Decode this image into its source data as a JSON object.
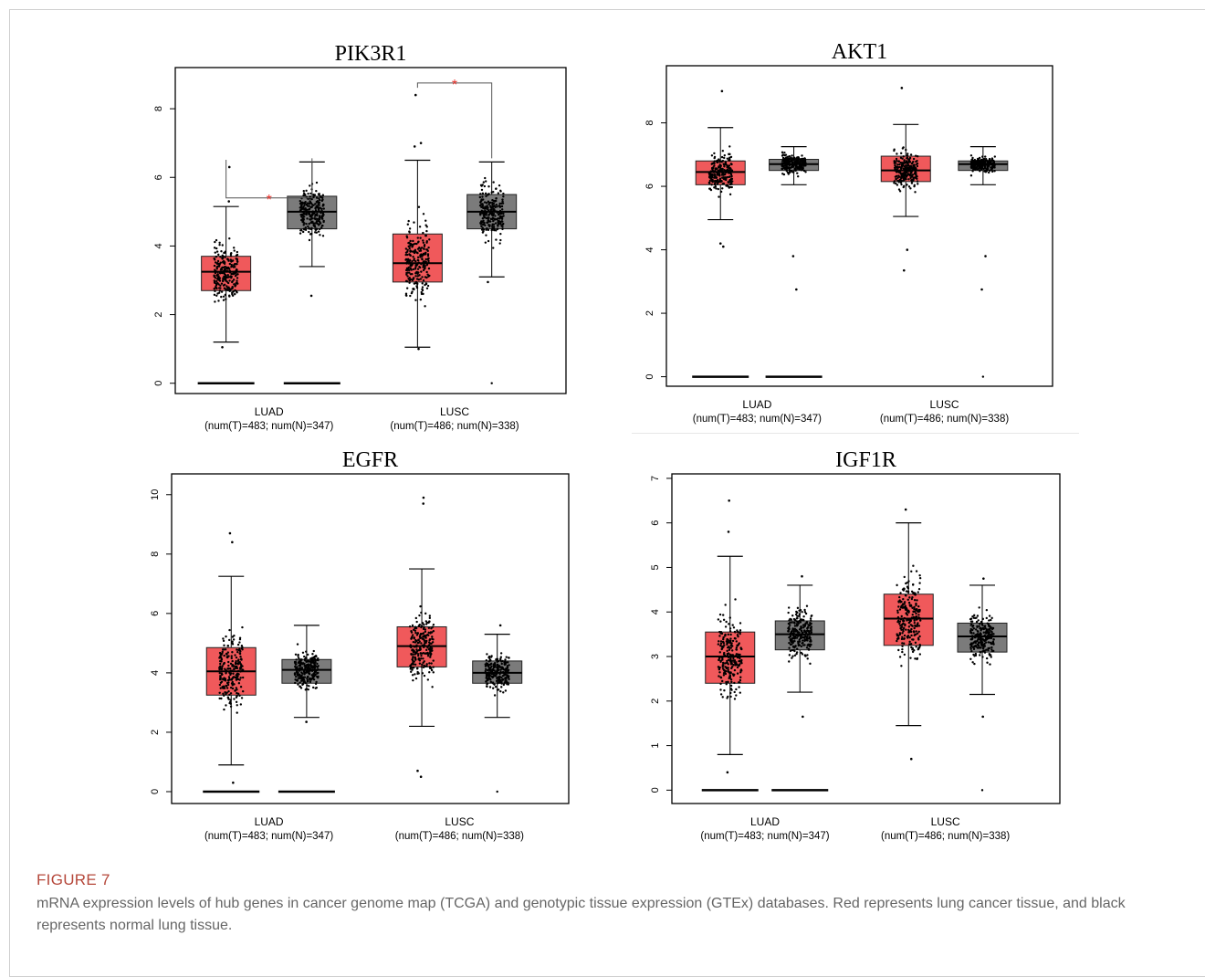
{
  "figure": {
    "label": "FIGURE 7",
    "caption": "mRNA expression levels of hub genes in cancer genome map (TCGA) and genotypic tissue expression (GTEx) databases. Red represents lung cancer tissue, and black represents normal lung tissue."
  },
  "colors": {
    "tumor": "#f0595b",
    "normal": "#7b7b7b",
    "significance": "#e8332c"
  },
  "chart_data": [
    {
      "type": "box",
      "title": "PIK3R1",
      "ylim": [
        -0.3,
        9.2
      ],
      "yticks": [
        "0",
        "2",
        "4",
        "6",
        "8"
      ],
      "groups": [
        {
          "name": "LUAD",
          "label2": "(num(T)=483; num(N)=347)",
          "tumor": {
            "min": 1.2,
            "q1": 2.7,
            "median": 3.25,
            "q3": 3.7,
            "max": 5.15,
            "outliers": [
              6.3,
              5.3,
              1.05,
              0.0
            ]
          },
          "normal": {
            "min": 3.4,
            "q1": 4.5,
            "median": 5.0,
            "q3": 5.45,
            "max": 6.45,
            "outliers": [
              2.55,
              0.0
            ]
          }
        },
        {
          "name": "LUSC",
          "label2": "(num(T)=486; num(N)=338)",
          "tumor": {
            "min": 1.05,
            "q1": 2.95,
            "median": 3.5,
            "q3": 4.35,
            "max": 6.5,
            "outliers": [
              8.4,
              7.0,
              6.9,
              1.0
            ]
          },
          "normal": {
            "min": 3.1,
            "q1": 4.5,
            "median": 5.0,
            "q3": 5.5,
            "max": 6.45,
            "outliers": [
              2.95,
              0.0
            ]
          }
        }
      ],
      "significance": [
        "*",
        "*"
      ]
    },
    {
      "type": "box",
      "title": "AKT1",
      "ylim": [
        -0.3,
        9.8
      ],
      "yticks": [
        "0",
        "2",
        "4",
        "6",
        "8"
      ],
      "groups": [
        {
          "name": "LUAD",
          "label2": "(num(T)=483; num(N)=347)",
          "tumor": {
            "min": 4.95,
            "q1": 6.05,
            "median": 6.45,
            "q3": 6.8,
            "max": 7.85,
            "outliers": [
              9.0,
              4.1,
              4.2,
              0.0
            ]
          },
          "normal": {
            "min": 6.05,
            "q1": 6.5,
            "median": 6.7,
            "q3": 6.85,
            "max": 7.25,
            "outliers": [
              3.8,
              2.75,
              0.0
            ]
          }
        },
        {
          "name": "LUSC",
          "label2": "(num(T)=486; num(N)=338)",
          "tumor": {
            "min": 5.05,
            "q1": 6.15,
            "median": 6.5,
            "q3": 6.95,
            "max": 7.95,
            "outliers": [
              9.1,
              3.35,
              4.0
            ]
          },
          "normal": {
            "min": 6.05,
            "q1": 6.5,
            "median": 6.7,
            "q3": 6.8,
            "max": 7.25,
            "outliers": [
              3.8,
              2.75,
              0.0
            ]
          }
        }
      ],
      "significance": []
    },
    {
      "type": "box",
      "title": "EGFR",
      "ylim": [
        -0.4,
        10.7
      ],
      "yticks": [
        "0",
        "2",
        "4",
        "6",
        "8",
        "10"
      ],
      "groups": [
        {
          "name": "LUAD",
          "label2": "(num(T)=483; num(N)=347)",
          "tumor": {
            "min": 0.9,
            "q1": 3.25,
            "median": 4.05,
            "q3": 4.85,
            "max": 7.25,
            "outliers": [
              8.7,
              8.4,
              0.3,
              0.0
            ]
          },
          "normal": {
            "min": 2.5,
            "q1": 3.65,
            "median": 4.1,
            "q3": 4.45,
            "max": 5.6,
            "outliers": [
              2.35,
              0.0
            ]
          }
        },
        {
          "name": "LUSC",
          "label2": "(num(T)=486; num(N)=338)",
          "tumor": {
            "min": 2.2,
            "q1": 4.2,
            "median": 4.9,
            "q3": 5.55,
            "max": 7.5,
            "outliers": [
              9.9,
              9.7,
              0.5,
              0.7
            ]
          },
          "normal": {
            "min": 2.5,
            "q1": 3.65,
            "median": 4.0,
            "q3": 4.4,
            "max": 5.3,
            "outliers": [
              5.6,
              0.0
            ]
          }
        }
      ],
      "significance": []
    },
    {
      "type": "box",
      "title": "IGF1R",
      "ylim": [
        -0.3,
        7.1
      ],
      "yticks": [
        "0",
        "1",
        "2",
        "3",
        "4",
        "5",
        "6",
        "7"
      ],
      "groups": [
        {
          "name": "LUAD",
          "label2": "(num(T)=483; num(N)=347)",
          "tumor": {
            "min": 0.8,
            "q1": 2.4,
            "median": 3.0,
            "q3": 3.55,
            "max": 5.25,
            "outliers": [
              6.5,
              5.8,
              0.4,
              0.0
            ]
          },
          "normal": {
            "min": 2.2,
            "q1": 3.15,
            "median": 3.5,
            "q3": 3.8,
            "max": 4.6,
            "outliers": [
              4.8,
              1.65,
              0.0
            ]
          }
        },
        {
          "name": "LUSC",
          "label2": "(num(T)=486; num(N)=338)",
          "tumor": {
            "min": 1.45,
            "q1": 3.25,
            "median": 3.85,
            "q3": 4.4,
            "max": 6.0,
            "outliers": [
              6.3,
              0.7
            ]
          },
          "normal": {
            "min": 2.15,
            "q1": 3.1,
            "median": 3.45,
            "q3": 3.75,
            "max": 4.6,
            "outliers": [
              4.75,
              1.65,
              0.0
            ]
          }
        }
      ],
      "significance": []
    }
  ]
}
